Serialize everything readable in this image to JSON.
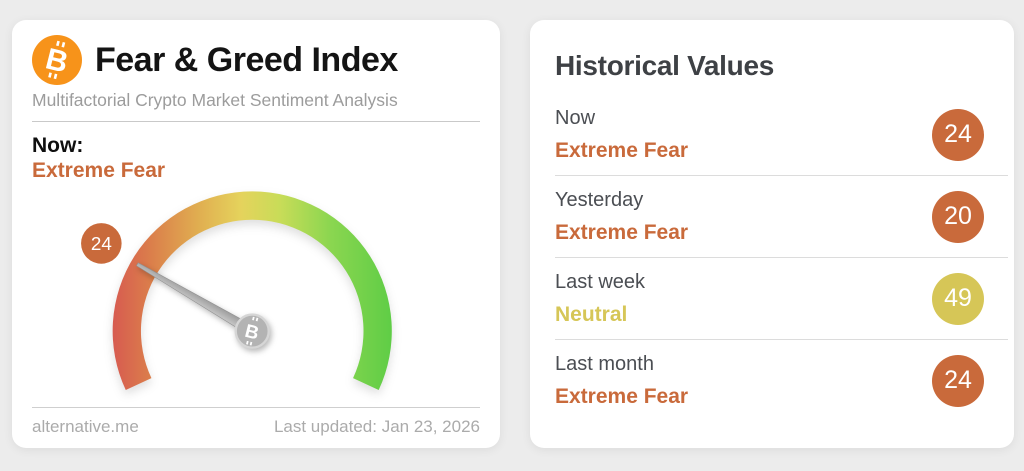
{
  "page": {
    "background": "#ECECEC"
  },
  "colors": {
    "card_bg": "#FFFFFF",
    "bitcoin_orange": "#F7931A",
    "extreme_fear": "#C96A3B",
    "neutral": "#D6C657",
    "badge_text": "#FFFFFF",
    "title_text": "#141414",
    "muted_text": "#9C9C9C",
    "heading_text": "#3E4145",
    "label_text": "#4B4E53",
    "footer_text": "#ABABAB",
    "divider": "#DCDCDC",
    "needle_gray": "#ACACAC",
    "hub_gray": "#B3B3B3",
    "gauge_gradient": [
      "#D75B50",
      "#DB7F4B",
      "#E0AC50",
      "#E5D35C",
      "#C8DC58",
      "#8BD650",
      "#5FCD46"
    ]
  },
  "gauge_card": {
    "title": "Fear & Greed Index",
    "subtitle": "Multifactorial Crypto Market Sentiment Analysis",
    "now_label": "Now:",
    "now_classification": "Extreme Fear",
    "gauge": {
      "value": 24,
      "min": 0,
      "max": 100,
      "start_angle_deg": 205,
      "sweep_deg": 230
    },
    "footer": {
      "source": "alternative.me",
      "last_updated": "Last updated: Jan 23, 2026"
    }
  },
  "history_card": {
    "title": "Historical Values",
    "rows": [
      {
        "label": "Now",
        "classification": "Extreme Fear",
        "value": "24",
        "color": "#C96A3B"
      },
      {
        "label": "Yesterday",
        "classification": "Extreme Fear",
        "value": "20",
        "color": "#C96A3B"
      },
      {
        "label": "Last week",
        "classification": "Neutral",
        "value": "49",
        "color": "#D6C657"
      },
      {
        "label": "Last month",
        "classification": "Extreme Fear",
        "value": "24",
        "color": "#C96A3B"
      }
    ]
  },
  "chart_data": {
    "type": "gauge",
    "title": "Fear & Greed Index",
    "subtitle": "Multifactorial Crypto Market Sentiment Analysis",
    "value": 24,
    "min": 0,
    "max": 100,
    "classification": "Extreme Fear",
    "scale": "0 = Extreme Fear (red, left) to 100 = Extreme Greed (green, right)",
    "last_updated": "Jan 23, 2026",
    "source": "alternative.me",
    "history": [
      {
        "period": "Now",
        "value": 24,
        "classification": "Extreme Fear"
      },
      {
        "period": "Yesterday",
        "value": 20,
        "classification": "Extreme Fear"
      },
      {
        "period": "Last week",
        "value": 49,
        "classification": "Neutral"
      },
      {
        "period": "Last month",
        "value": 24,
        "classification": "Extreme Fear"
      }
    ]
  }
}
